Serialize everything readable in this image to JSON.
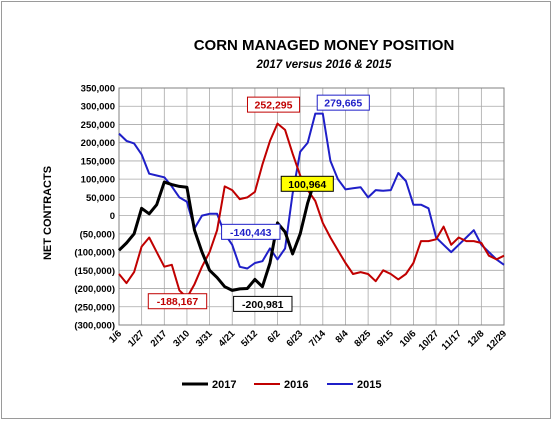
{
  "chart_data": {
    "type": "line",
    "title": "CORN MANAGED MONEY POSITION",
    "subtitle": "2017 versus 2016 & 2015",
    "ylabel": "NET CONTRACTS",
    "xlabel": "",
    "ylim": [
      -300000,
      350000
    ],
    "yticks": [
      "350,000",
      "300,000",
      "250,000",
      "200,000",
      "150,000",
      "100,000",
      "50,000",
      "0",
      "(50,000)",
      "(100,000)",
      "(150,000)",
      "(200,000)",
      "(250,000)",
      "(300,000)"
    ],
    "categories": [
      "1/6",
      "1/27",
      "2/17",
      "3/10",
      "3/31",
      "4/21",
      "5/12",
      "6/2",
      "6/23",
      "7/14",
      "8/4",
      "8/25",
      "9/15",
      "10/6",
      "10/27",
      "11/17",
      "12/8",
      "12/29"
    ],
    "grid": true,
    "legend_position": "bottom",
    "colors": {
      "2017": "#000000",
      "2016": "#c00000",
      "2015": "#1f1fc8"
    },
    "series": [
      {
        "name": "2017",
        "x": [
          0,
          1,
          2,
          3,
          4,
          5,
          6,
          7,
          8,
          9,
          10,
          11,
          12,
          13,
          14,
          15,
          16,
          17,
          18,
          19,
          20,
          21,
          22,
          23,
          24,
          25,
          26,
          27
        ],
        "values": [
          -95000,
          -75000,
          -50000,
          20000,
          5000,
          30000,
          92000,
          85000,
          80000,
          78000,
          -40000,
          -100000,
          -150000,
          -170000,
          -195000,
          -205000,
          -200981,
          -200000,
          -175000,
          -195000,
          -130000,
          -20000,
          -45000,
          -105000,
          -50000,
          35000,
          100964,
          100964
        ]
      },
      {
        "name": "2016",
        "x": [
          0,
          1,
          2,
          3,
          4,
          5,
          6,
          7,
          8,
          9,
          10,
          11,
          12,
          13,
          14,
          15,
          16,
          17,
          18,
          19,
          20,
          21,
          22,
          23,
          24,
          25,
          26,
          27,
          28,
          29,
          30,
          31,
          32,
          33,
          34,
          35,
          36,
          37,
          38,
          39,
          40,
          41,
          42,
          43,
          44,
          45,
          46,
          47,
          48,
          49,
          50,
          51
        ],
        "values": [
          -160000,
          -185000,
          -155000,
          -85000,
          -60000,
          -100000,
          -140000,
          -135000,
          -205000,
          -225000,
          -188167,
          -140000,
          -100000,
          -40000,
          80000,
          70000,
          45000,
          50000,
          65000,
          140000,
          205000,
          252295,
          235000,
          170000,
          110000,
          70000,
          40000,
          -20000,
          -60000,
          -95000,
          -130000,
          -160000,
          -155000,
          -160000,
          -180000,
          -150000,
          -160000,
          -175000,
          -160000,
          -130000,
          -70000,
          -70000,
          -65000,
          -30000,
          -80000,
          -60000,
          -70000,
          -70000,
          -75000,
          -110000,
          -120000,
          -110000
        ]
      },
      {
        "name": "2015",
        "x": [
          0,
          1,
          2,
          3,
          4,
          5,
          6,
          7,
          8,
          9,
          10,
          11,
          12,
          13,
          14,
          15,
          16,
          17,
          18,
          19,
          20,
          21,
          22,
          23,
          24,
          25,
          26,
          27,
          28,
          29,
          30,
          31,
          32,
          33,
          34,
          35,
          36,
          37,
          38,
          39,
          40,
          41,
          42,
          43,
          44,
          45,
          46,
          47,
          48,
          49,
          50,
          51
        ],
        "values": [
          225000,
          205000,
          198000,
          168000,
          115000,
          110000,
          105000,
          80000,
          50000,
          38000,
          -35000,
          0,
          5000,
          5000,
          -50000,
          -80000,
          -140443,
          -145000,
          -130000,
          -125000,
          -90000,
          -120000,
          -90000,
          60000,
          175000,
          200000,
          279665,
          279665,
          150000,
          100000,
          72000,
          75000,
          78000,
          50000,
          70000,
          68000,
          70000,
          117000,
          95000,
          30000,
          30000,
          20000,
          -60000,
          -80000,
          -100000,
          -80000,
          -60000,
          -40000,
          -80000,
          -100000,
          -120000,
          -135000
        ]
      }
    ],
    "annotations": [
      {
        "text": "-140,443",
        "series": "2015",
        "x": 16,
        "value": -140443
      },
      {
        "text": "-188,167",
        "series": "2016",
        "x": 10,
        "value": -188167
      },
      {
        "text": "252,295",
        "series": "2016",
        "x": 21,
        "value": 252295
      },
      {
        "text": "279,665",
        "series": "2015",
        "x": 26,
        "value": 279665
      },
      {
        "text": "100,964",
        "series": "2017",
        "x": 26,
        "value": 100964
      },
      {
        "text": "-200,981",
        "series": "2017",
        "x": 16,
        "value": -200981
      }
    ]
  }
}
